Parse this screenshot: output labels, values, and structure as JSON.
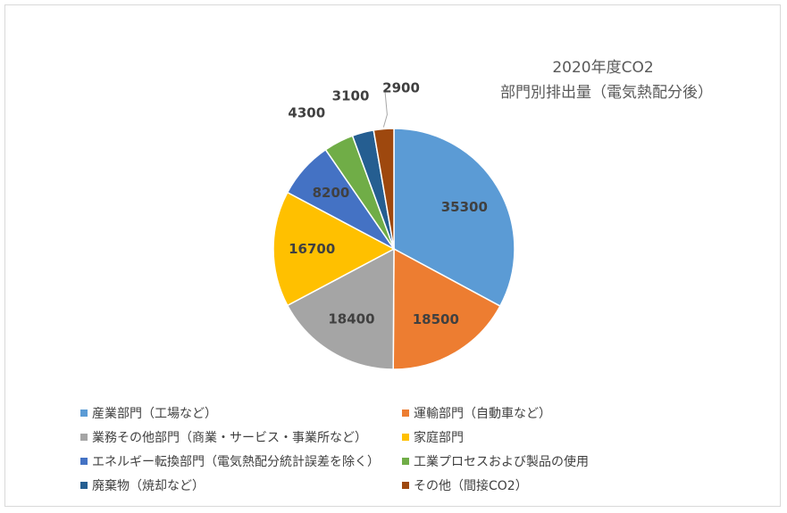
{
  "chart_data": {
    "type": "pie",
    "title_line1": "2020年度CO2",
    "title_line2": "部門別排出量（電気熱配分後）",
    "slices": [
      {
        "label": "産業部門（工場など）",
        "value": 35300,
        "color": "#5B9BD5"
      },
      {
        "label": "運輸部門（自動車など）",
        "value": 18500,
        "color": "#ED7D31"
      },
      {
        "label": "業務その他部門（商業・サービス・事業所など）",
        "value": 18400,
        "color": "#A5A5A5"
      },
      {
        "label": "家庭部門",
        "value": 16700,
        "color": "#FFC000"
      },
      {
        "label": "エネルギー転換部門（電気熱配分統計誤差を除く）",
        "value": 8200,
        "color": "#4472C4"
      },
      {
        "label": "工業プロセスおよび製品の使用",
        "value": 4300,
        "color": "#70AD47"
      },
      {
        "label": "廃棄物（焼却など）",
        "value": 3100,
        "color": "#255E91"
      },
      {
        "label": "その他（間接CO2）",
        "value": 2900,
        "color": "#9E480E"
      }
    ],
    "data_labels": [
      "35300",
      "18500",
      "18400",
      "16700",
      "8200",
      "4300",
      "3100",
      "2900"
    ],
    "legend_position": "bottom"
  }
}
